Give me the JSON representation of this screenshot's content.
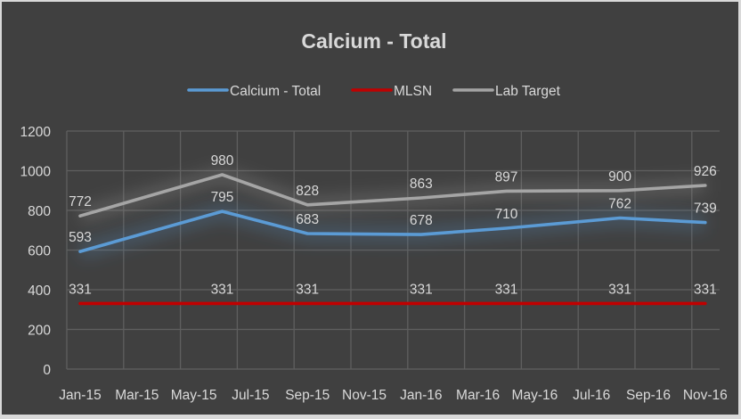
{
  "chart_data": {
    "type": "line",
    "title": "Calcium - Total",
    "xlabel": "",
    "ylabel": "",
    "ylim": [
      0,
      1200
    ],
    "yticks": [
      0,
      200,
      400,
      600,
      800,
      1000,
      1200
    ],
    "xtick_labels": [
      "Jan-15",
      "Mar-15",
      "May-15",
      "Jul-15",
      "Sep-15",
      "Nov-15",
      "Jan-16",
      "Mar-16",
      "May-16",
      "Jul-16",
      "Sep-16",
      "Nov-16"
    ],
    "x": [
      "Jan-15",
      "Jun-15",
      "Sep-15",
      "Jan-16",
      "Apr-16",
      "Aug-16",
      "Nov-16"
    ],
    "x_month_index": [
      0,
      5,
      8,
      12,
      15,
      19,
      22
    ],
    "grid": true,
    "legend_position": "top",
    "series": [
      {
        "name": "Calcium - Total",
        "color": "#5b9bd5",
        "values": [
          593,
          795,
          683,
          678,
          710,
          762,
          739
        ]
      },
      {
        "name": "MLSN",
        "color": "#c00000",
        "values": [
          331,
          331,
          331,
          331,
          331,
          331,
          331
        ]
      },
      {
        "name": "Lab Target",
        "color": "#a5a5a5",
        "values": [
          772,
          980,
          828,
          863,
          897,
          900,
          926
        ]
      }
    ]
  },
  "colors": {
    "background": "#404040",
    "text": "#d9d9d9",
    "grid": "#5f5f5f",
    "border": "#d9d9d9"
  }
}
